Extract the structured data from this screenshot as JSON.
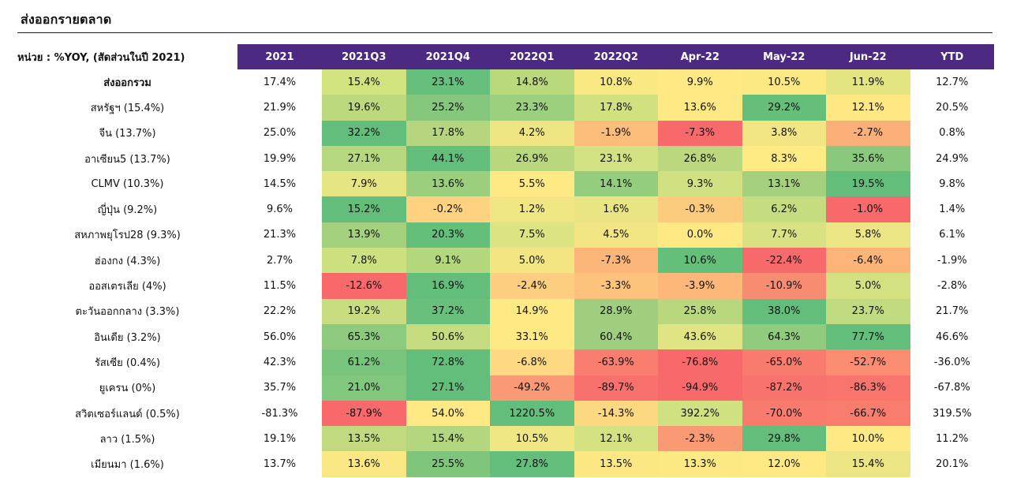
{
  "title": "ส่งออกรายตลาด",
  "table": {
    "unit_label": "หน่วย : %YOY, (สัดส่วนในปี 2021)",
    "columns": [
      "2021",
      "2021Q3",
      "2021Q4",
      "2022Q1",
      "2022Q2",
      "Apr-22",
      "May-22",
      "Jun-22",
      "YTD"
    ],
    "rows": [
      {
        "label": "ส่งออกรวม",
        "total": true,
        "values": [
          "17.4%",
          "15.4%",
          "23.1%",
          "14.8%",
          "10.8%",
          "9.9%",
          "10.5%",
          "11.9%",
          "12.7%"
        ],
        "colors": [
          "#d0e37f",
          "#67bf7d",
          "#bad97d",
          "#f9e983",
          "#ffe984",
          "#fde983",
          "#e3e583"
        ]
      },
      {
        "label": "สหรัฐฯ (15.4%)",
        "values": [
          "21.9%",
          "19.6%",
          "25.2%",
          "23.3%",
          "17.8%",
          "13.6%",
          "29.2%",
          "12.1%",
          "20.5%"
        ],
        "colors": [
          "#bcd97e",
          "#86c77e",
          "#9ccf7e",
          "#d2e180",
          "#ffe984",
          "#65bf7b",
          "#ffe884"
        ]
      },
      {
        "label": "จีน (13.7%)",
        "values": [
          "25.0%",
          "32.2%",
          "17.8%",
          "4.2%",
          "-1.9%",
          "-7.3%",
          "3.8%",
          "-2.7%",
          "0.8%"
        ],
        "colors": [
          "#63be7b",
          "#b5d67e",
          "#efe683",
          "#fcbd7b",
          "#f8696b",
          "#f1e683",
          "#fbb07a"
        ]
      },
      {
        "label": "อาเซียน5 (13.7%)",
        "values": [
          "19.9%",
          "27.1%",
          "44.1%",
          "26.9%",
          "23.1%",
          "26.8%",
          "8.3%",
          "35.6%",
          "24.9%"
        ],
        "colors": [
          "#b7d77e",
          "#63be7b",
          "#b9d87e",
          "#d2e181",
          "#bbd87e",
          "#ffeb84",
          "#8ac97d"
        ]
      },
      {
        "label": "CLMV (10.3%)",
        "values": [
          "14.5%",
          "7.9%",
          "13.6%",
          "5.5%",
          "14.1%",
          "9.3%",
          "13.1%",
          "19.5%",
          "9.8%"
        ],
        "colors": [
          "#e6e583",
          "#9bcf7e",
          "#ffe984",
          "#95cd7e",
          "#d1e181",
          "#a5d17f",
          "#63be7b"
        ]
      },
      {
        "label": "ญี่ปุ่น (9.2%)",
        "values": [
          "9.6%",
          "15.2%",
          "-0.2%",
          "1.2%",
          "1.6%",
          "-0.3%",
          "6.2%",
          "-1.0%",
          "1.4%"
        ],
        "colors": [
          "#63be7b",
          "#fed280",
          "#f0e683",
          "#e9e583",
          "#fdcb7d",
          "#c5dc80",
          "#f8696b"
        ]
      },
      {
        "label": "สหภาพยุโรป28 (9.3%)",
        "values": [
          "21.3%",
          "13.9%",
          "20.3%",
          "7.5%",
          "4.5%",
          "0.0%",
          "7.7%",
          "5.8%",
          "6.1%"
        ],
        "colors": [
          "#a4d17e",
          "#64bf7b",
          "#dce382",
          "#f1e683",
          "#ffe984",
          "#d9e282",
          "#ebe583"
        ]
      },
      {
        "label": "ฮ่องกง (4.3%)",
        "values": [
          "2.7%",
          "7.8%",
          "9.1%",
          "5.0%",
          "-7.3%",
          "10.6%",
          "-22.4%",
          "-6.4%",
          "-1.9%"
        ],
        "colors": [
          "#cce080",
          "#b4d77e",
          "#f3e682",
          "#fcb579",
          "#64bf7b",
          "#f8696b",
          "#fcb479"
        ]
      },
      {
        "label": "ออสเตรเลีย (4%)",
        "values": [
          "11.5%",
          "-12.6%",
          "16.9%",
          "-2.4%",
          "-3.3%",
          "-3.9%",
          "-10.9%",
          "5.0%",
          "-2.8%"
        ],
        "colors": [
          "#f8696b",
          "#63be7b",
          "#fdce7f",
          "#fdc27c",
          "#fcb779",
          "#f88c72",
          "#d3e181"
        ]
      },
      {
        "label": "ตะวันออกกลาง (3.3%)",
        "values": [
          "22.2%",
          "19.2%",
          "37.2%",
          "14.9%",
          "28.9%",
          "25.8%",
          "38.0%",
          "23.7%",
          "21.7%"
        ],
        "colors": [
          "#c7dd80",
          "#68c07c",
          "#ffe984",
          "#9fcf7e",
          "#b9d87e",
          "#63be7b",
          "#c1db80"
        ]
      },
      {
        "label": "อินเดีย (3.2%)",
        "values": [
          "56.0%",
          "65.3%",
          "50.6%",
          "33.1%",
          "60.4%",
          "43.6%",
          "64.3%",
          "77.7%",
          "46.6%"
        ],
        "colors": [
          "#8dca7e",
          "#c5dc80",
          "#ffe984",
          "#9ece7e",
          "#e1e482",
          "#90cb7e",
          "#63be7b"
        ]
      },
      {
        "label": "รัสเซีย (0.4%)",
        "values": [
          "42.3%",
          "61.2%",
          "72.8%",
          "-6.8%",
          "-63.9%",
          "-76.8%",
          "-65.0%",
          "-52.7%",
          "-36.0%"
        ],
        "colors": [
          "#79c47c",
          "#63be7b",
          "#fed981",
          "#f97e6f",
          "#f8696b",
          "#f97b6e",
          "#fa8d71"
        ]
      },
      {
        "label": "ยูเครน (0%)",
        "values": [
          "35.7%",
          "21.0%",
          "27.1%",
          "-49.2%",
          "-89.7%",
          "-94.9%",
          "-87.2%",
          "-86.3%",
          "-67.8%"
        ],
        "colors": [
          "#81c77d",
          "#63be7b",
          "#fa9a75",
          "#f8716c",
          "#f8696b",
          "#f8736d",
          "#f8746d"
        ]
      },
      {
        "label": "สวิตเซอร์แลนด์ (0.5%)",
        "values": [
          "-81.3%",
          "-87.9%",
          "54.0%",
          "1220.5%",
          "-14.3%",
          "392.2%",
          "-70.0%",
          "-66.7%",
          "319.5%"
        ],
        "colors": [
          "#f8696b",
          "#ffe984",
          "#63be7b",
          "#fcd880",
          "#d0e181",
          "#f87b6e",
          "#f87d6f"
        ]
      },
      {
        "label": "ลาว (1.5%)",
        "values": [
          "19.1%",
          "13.5%",
          "15.4%",
          "10.5%",
          "12.1%",
          "-2.3%",
          "29.8%",
          "10.0%",
          "11.2%"
        ],
        "colors": [
          "#c1da80",
          "#b3d67e",
          "#f0e683",
          "#d5e281",
          "#fa9a75",
          "#63be7b",
          "#ffe984"
        ]
      },
      {
        "label": "เมียนมา (1.6%)",
        "values": [
          "13.7%",
          "13.6%",
          "25.5%",
          "27.8%",
          "13.5%",
          "13.3%",
          "12.0%",
          "15.4%",
          "20.1%"
        ],
        "colors": [
          "#f9e783",
          "#7fc67c",
          "#63be7b",
          "#fbe883",
          "#fde983",
          "#ffe984",
          "#ebe583"
        ]
      }
    ]
  }
}
